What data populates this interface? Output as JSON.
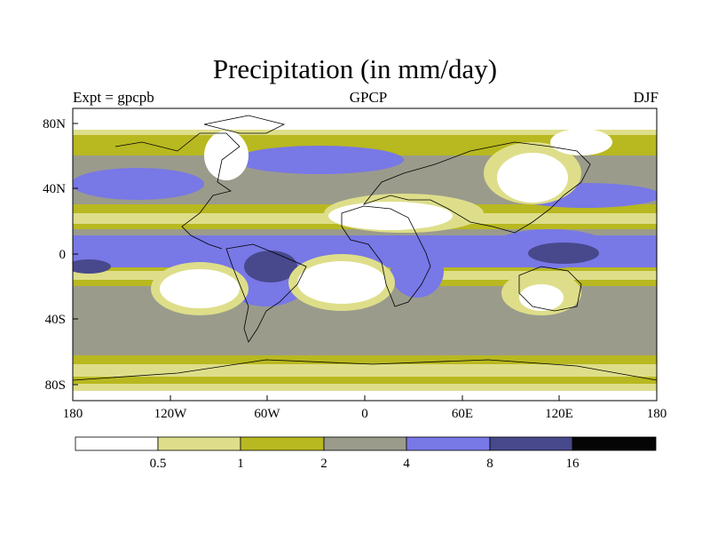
{
  "title": "Precipitation (in mm/day)",
  "subtitle_left": "Expt = gpcpb",
  "subtitle_center": "GPCP",
  "subtitle_right": "DJF",
  "map": {
    "lon_labels": [
      "180",
      "120W",
      "60W",
      "0",
      "60E",
      "120E",
      "180"
    ],
    "lat_labels": [
      "80N",
      "40N",
      "0",
      "40S",
      "80S"
    ]
  },
  "colorbar": {
    "colors": [
      "#ffffff",
      "#dede8a",
      "#b8b820",
      "#9b9b8c",
      "#7878e6",
      "#48488c",
      "#050505"
    ],
    "labels": [
      "0.5",
      "1",
      "2",
      "4",
      "8",
      "16"
    ]
  },
  "level_colors": {
    "lt_0_5": "#ffffff",
    "0_5_to_1": "#dede8a",
    "1_to_2": "#b8b820",
    "2_to_4": "#9b9b8c",
    "4_to_8": "#7878e6",
    "8_to_16": "#48488c",
    "gt_16": "#050505"
  }
}
